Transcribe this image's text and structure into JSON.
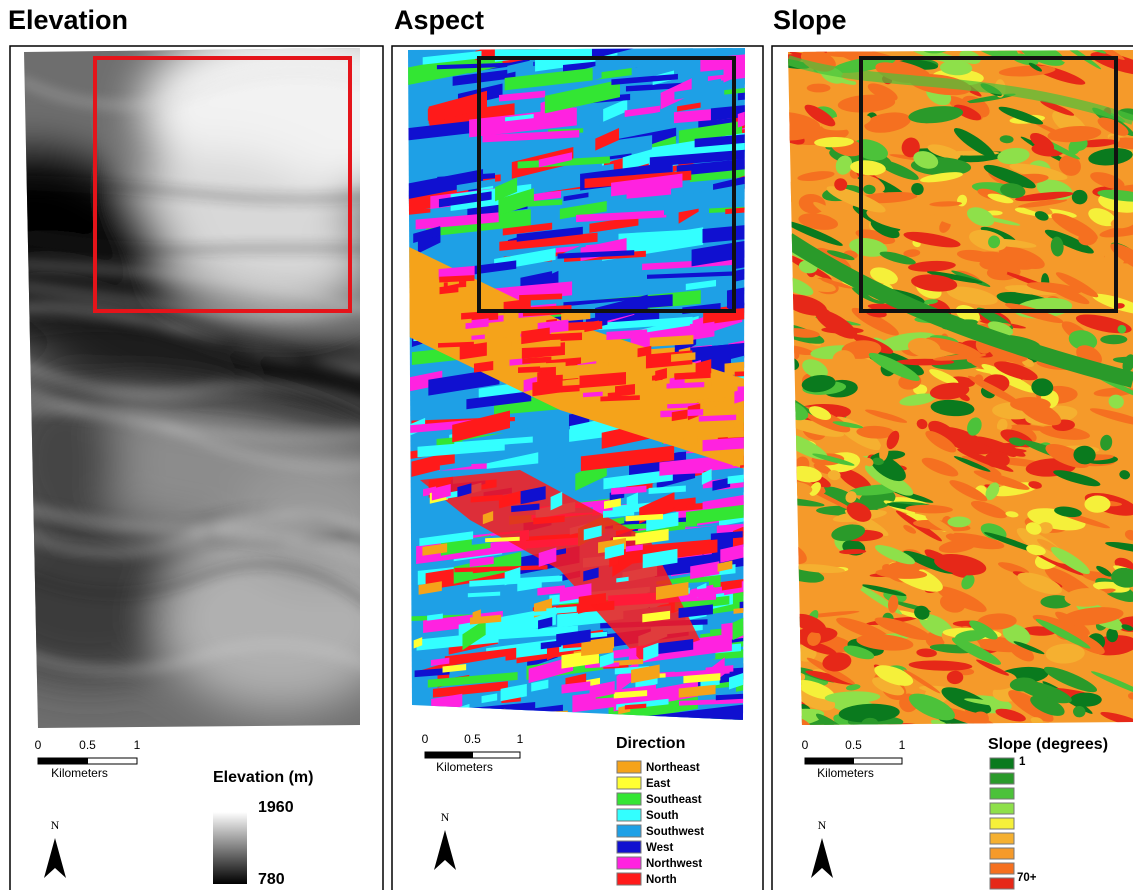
{
  "panels": [
    {
      "title": "Elevation",
      "scale_bar": {
        "ticks": [
          "0",
          "0.5",
          "1"
        ],
        "unit": "Kilometers"
      },
      "north": "N",
      "legend": {
        "title": "Elevation (m)",
        "high": "1960",
        "low": "780"
      }
    },
    {
      "title": "Aspect",
      "scale_bar": {
        "ticks": [
          "0",
          "0.5",
          "1"
        ],
        "unit": "Kilometers"
      },
      "north": "N",
      "legend": {
        "title": "Direction",
        "items": [
          {
            "label": "Northeast",
            "color": "#f5a31a"
          },
          {
            "label": "East",
            "color": "#ffff33"
          },
          {
            "label": "Southeast",
            "color": "#33e633"
          },
          {
            "label": "South",
            "color": "#33ffff"
          },
          {
            "label": "Southwest",
            "color": "#1ea0e6"
          },
          {
            "label": "West",
            "color": "#1010d0"
          },
          {
            "label": "Northwest",
            "color": "#ff22e0"
          },
          {
            "label": "North",
            "color": "#ff1a1a"
          }
        ]
      }
    },
    {
      "title": "Slope",
      "scale_bar": {
        "ticks": [
          "0",
          "0.5",
          "1"
        ],
        "unit": "Kilometers"
      },
      "north": "N",
      "legend": {
        "title": "Slope (degrees)",
        "colors": [
          "#0a7a1e",
          "#2a9a2a",
          "#4cc23a",
          "#8ee04a",
          "#f5f03a",
          "#f5b030",
          "#f59a2a",
          "#f57020",
          "#e62818"
        ],
        "first": "1",
        "last": "70+"
      }
    }
  ]
}
